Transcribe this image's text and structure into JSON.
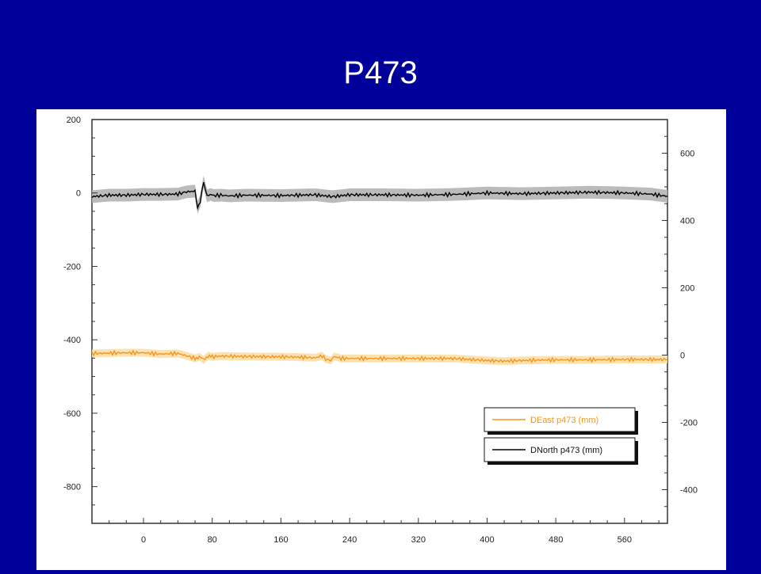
{
  "slide": {
    "title": "P473"
  },
  "chart_data": {
    "type": "line",
    "title": "P473",
    "x_ticks": [
      0,
      80,
      160,
      240,
      320,
      400,
      480,
      560
    ],
    "xlim": [
      -60,
      610
    ],
    "left_axis": {
      "ticks": [
        200,
        0,
        -200,
        -400,
        -600,
        -800
      ],
      "ylim": [
        -900,
        200
      ]
    },
    "right_axis": {
      "ticks": [
        600,
        400,
        200,
        0,
        -200,
        -400
      ],
      "ylim": [
        -500,
        700
      ]
    },
    "grid": false,
    "legend_position": "bottom-right",
    "series": [
      {
        "name": "DEast p473 (mm)",
        "axis": "right",
        "color": "#f7941d",
        "band_color": "#fbe0a8",
        "x": [
          -60,
          -20,
          0,
          20,
          40,
          50,
          60,
          65,
          70,
          75,
          80,
          90,
          120,
          160,
          180,
          200,
          208,
          212,
          218,
          222,
          230,
          260,
          300,
          360,
          400,
          420,
          440,
          480,
          520,
          560,
          600,
          610
        ],
        "y": [
          5,
          7,
          7,
          3,
          5,
          -2,
          -10,
          -5,
          -14,
          -2,
          -5,
          -3,
          -4,
          -5,
          -6,
          -8,
          -2,
          -12,
          -16,
          -4,
          -10,
          -10,
          -10,
          -10,
          -16,
          -18,
          -16,
          -14,
          -14,
          -13,
          -13,
          -13
        ]
      },
      {
        "name": "DNorth p473 (mm)",
        "axis": "left",
        "color": "#000000",
        "band_color": "#b4b4b4",
        "x": [
          -60,
          -40,
          -20,
          0,
          20,
          40,
          50,
          60,
          63,
          66,
          70,
          74,
          78,
          82,
          90,
          100,
          120,
          160,
          200,
          220,
          240,
          280,
          320,
          360,
          400,
          440,
          480,
          520,
          560,
          590,
          610
        ],
        "y": [
          -10,
          -6,
          -6,
          -4,
          -4,
          -3,
          3,
          5,
          -40,
          -22,
          30,
          -8,
          -4,
          -7,
          -6,
          -8,
          -6,
          -7,
          -5,
          -10,
          -5,
          -5,
          -6,
          -4,
          0,
          -2,
          0,
          2,
          0,
          -3,
          -9
        ]
      }
    ]
  }
}
